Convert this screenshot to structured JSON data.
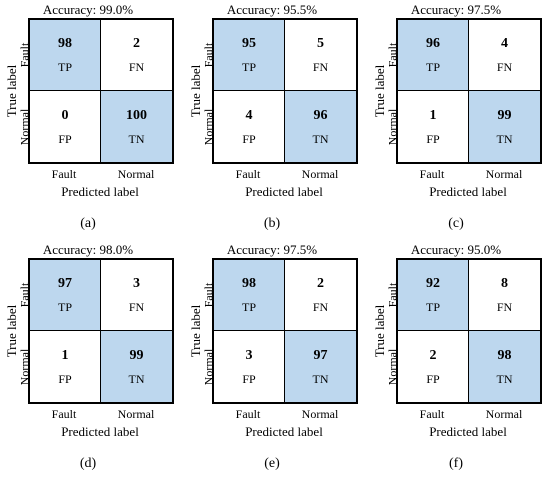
{
  "figure": {
    "highlight_color": "#bdd7ee"
  },
  "panels": [
    {
      "accuracy": "Accuracy: 99.0%",
      "tp": "98",
      "fn": "2",
      "fp": "0",
      "tn": "100",
      "label": "(a)"
    },
    {
      "accuracy": "Accuracy: 95.5%",
      "tp": "95",
      "fn": "5",
      "fp": "4",
      "tn": "96",
      "label": "(b)"
    },
    {
      "accuracy": "Accuracy: 97.5%",
      "tp": "96",
      "fn": "4",
      "fp": "1",
      "tn": "99",
      "label": "(c)"
    },
    {
      "accuracy": "Accuracy: 98.0%",
      "tp": "97",
      "fn": "3",
      "fp": "1",
      "tn": "99",
      "label": "(d)"
    },
    {
      "accuracy": "Accuracy: 97.5%",
      "tp": "98",
      "fn": "2",
      "fp": "3",
      "tn": "97",
      "label": "(e)"
    },
    {
      "accuracy": "Accuracy: 95.0%",
      "tp": "92",
      "fn": "8",
      "fp": "2",
      "tn": "98",
      "label": "(f)"
    }
  ],
  "chart_data": [
    {
      "type": "heatmap",
      "title": "Accuracy: 99.0%",
      "xlabel": "Predicted label",
      "ylabel": "True label",
      "x_categories": [
        "Fault",
        "Normal"
      ],
      "y_categories": [
        "Fault",
        "Normal"
      ],
      "values": [
        [
          98,
          2
        ],
        [
          0,
          100
        ]
      ],
      "cell_tags": [
        [
          "TP",
          "FN"
        ],
        [
          "FP",
          "TN"
        ]
      ]
    },
    {
      "type": "heatmap",
      "title": "Accuracy: 95.5%",
      "xlabel": "Predicted label",
      "ylabel": "True label",
      "x_categories": [
        "Fault",
        "Normal"
      ],
      "y_categories": [
        "Fault",
        "Normal"
      ],
      "values": [
        [
          95,
          5
        ],
        [
          4,
          96
        ]
      ],
      "cell_tags": [
        [
          "TP",
          "FN"
        ],
        [
          "FP",
          "TN"
        ]
      ]
    },
    {
      "type": "heatmap",
      "title": "Accuracy: 97.5%",
      "xlabel": "Predicted label",
      "ylabel": "True label",
      "x_categories": [
        "Fault",
        "Normal"
      ],
      "y_categories": [
        "Fault",
        "Normal"
      ],
      "values": [
        [
          96,
          4
        ],
        [
          1,
          99
        ]
      ],
      "cell_tags": [
        [
          "TP",
          "FN"
        ],
        [
          "FP",
          "TN"
        ]
      ]
    },
    {
      "type": "heatmap",
      "title": "Accuracy: 98.0%",
      "xlabel": "Predicted label",
      "ylabel": "True label",
      "x_categories": [
        "Fault",
        "Normal"
      ],
      "y_categories": [
        "Fault",
        "Normal"
      ],
      "values": [
        [
          97,
          3
        ],
        [
          1,
          99
        ]
      ],
      "cell_tags": [
        [
          "TP",
          "FN"
        ],
        [
          "FP",
          "TN"
        ]
      ]
    },
    {
      "type": "heatmap",
      "title": "Accuracy: 97.5%",
      "xlabel": "Predicted label",
      "ylabel": "True label",
      "x_categories": [
        "Fault",
        "Normal"
      ],
      "y_categories": [
        "Fault",
        "Normal"
      ],
      "values": [
        [
          98,
          2
        ],
        [
          3,
          97
        ]
      ],
      "cell_tags": [
        [
          "TP",
          "FN"
        ],
        [
          "FP",
          "TN"
        ]
      ]
    },
    {
      "type": "heatmap",
      "title": "Accuracy: 95.0%",
      "xlabel": "Predicted label",
      "ylabel": "True label",
      "x_categories": [
        "Fault",
        "Normal"
      ],
      "y_categories": [
        "Fault",
        "Normal"
      ],
      "values": [
        [
          92,
          8
        ],
        [
          2,
          98
        ]
      ],
      "cell_tags": [
        [
          "TP",
          "FN"
        ],
        [
          "FP",
          "TN"
        ]
      ]
    }
  ]
}
